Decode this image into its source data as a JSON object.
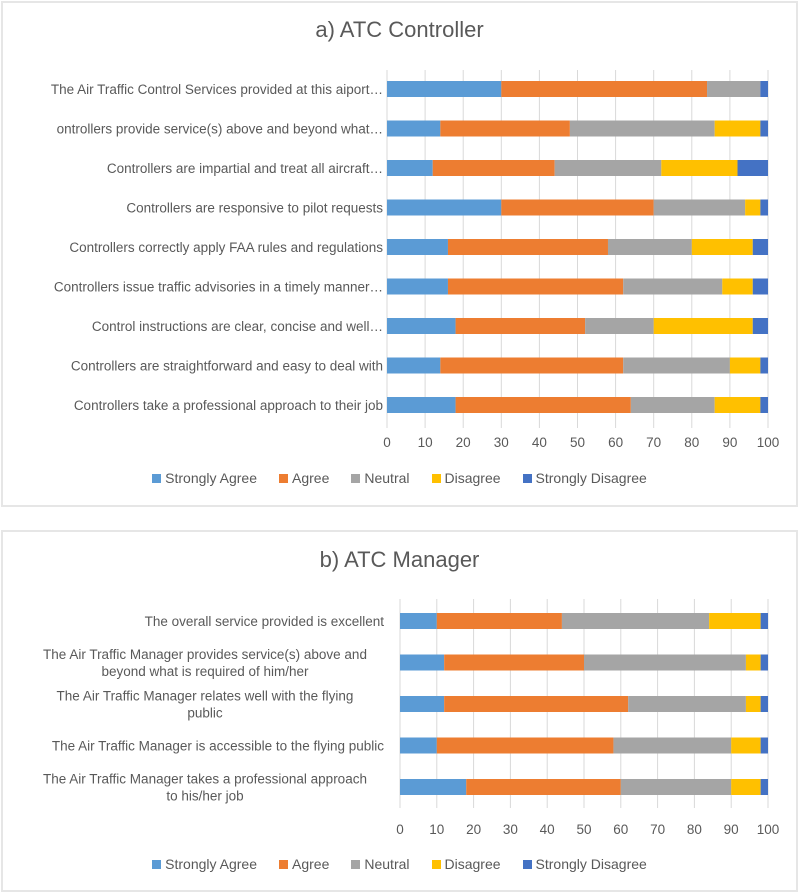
{
  "colors": {
    "Strongly Agree": "#5B9BD5",
    "Agree": "#ED7D31",
    "Neutral": "#A5A5A5",
    "Disagree": "#FFC000",
    "Strongly Disagree": "#4472C4",
    "grid": "#d9d9d9"
  },
  "chart_data": [
    {
      "type": "bar",
      "orientation": "horizontal",
      "stacked": true,
      "title": "a) ATC Controller",
      "xlabel": "",
      "ylabel": "",
      "xlim": [
        0,
        100
      ],
      "x_ticks": [
        "0",
        "10",
        "20",
        "30",
        "40",
        "50",
        "60",
        "70",
        "80",
        "90",
        "100"
      ],
      "grid": true,
      "legend_position": "bottom",
      "legend": [
        "Strongly Agree",
        "Agree",
        "Neutral",
        "Disagree",
        "Strongly Disagree"
      ],
      "categories": [
        "The Air Traffic Control Services provided at this aiport…",
        "ontrollers provide service(s) above and beyond what…",
        "Controllers are impartial and treat all aircraft…",
        "Controllers are responsive to pilot requests",
        "Controllers correctly apply FAA rules and regulations",
        "Controllers issue traffic advisories in a timely manner…",
        "Control instructions are clear, concise and well…",
        "Controllers are straightforward and easy to deal with",
        "Controllers take a professional approach to their job"
      ],
      "series": [
        {
          "name": "Strongly Agree",
          "values": [
            30,
            14,
            12,
            30,
            16,
            16,
            18,
            14,
            18
          ]
        },
        {
          "name": "Agree",
          "values": [
            54,
            34,
            32,
            40,
            42,
            46,
            34,
            48,
            46
          ]
        },
        {
          "name": "Neutral",
          "values": [
            14,
            38,
            28,
            24,
            22,
            26,
            18,
            28,
            22
          ]
        },
        {
          "name": "Disagree",
          "values": [
            0,
            12,
            20,
            4,
            16,
            8,
            26,
            8,
            12
          ]
        },
        {
          "name": "Strongly Disagree",
          "values": [
            2,
            2,
            8,
            2,
            4,
            4,
            4,
            2,
            2
          ]
        }
      ]
    },
    {
      "type": "bar",
      "orientation": "horizontal",
      "stacked": true,
      "title": "b) ATC Manager",
      "xlabel": "",
      "ylabel": "",
      "xlim": [
        0,
        100
      ],
      "x_ticks": [
        "0",
        "10",
        "20",
        "30",
        "40",
        "50",
        "60",
        "70",
        "80",
        "90",
        "100"
      ],
      "grid": true,
      "legend_position": "bottom",
      "legend": [
        "Strongly Agree",
        "Agree",
        "Neutral",
        "Disagree",
        "Strongly Disagree"
      ],
      "categories": [
        [
          "The overall service provided is excellent"
        ],
        [
          "The Air Traffic Manager provides service(s) above and",
          "beyond what is required of him/her"
        ],
        [
          "The Air Traffic Manager relates well with the flying",
          "public"
        ],
        [
          "The Air Traffic Manager is accessible to the flying public"
        ],
        [
          "The Air Traffic Manager takes a professional approach",
          "to his/her job"
        ]
      ],
      "series": [
        {
          "name": "Strongly Agree",
          "values": [
            10,
            12,
            12,
            10,
            18
          ]
        },
        {
          "name": "Agree",
          "values": [
            34,
            38,
            50,
            48,
            42
          ]
        },
        {
          "name": "Neutral",
          "values": [
            40,
            44,
            32,
            32,
            30
          ]
        },
        {
          "name": "Disagree",
          "values": [
            14,
            4,
            4,
            8,
            8
          ]
        },
        {
          "name": "Strongly Disagree",
          "values": [
            2,
            2,
            2,
            2,
            2
          ]
        }
      ]
    }
  ]
}
